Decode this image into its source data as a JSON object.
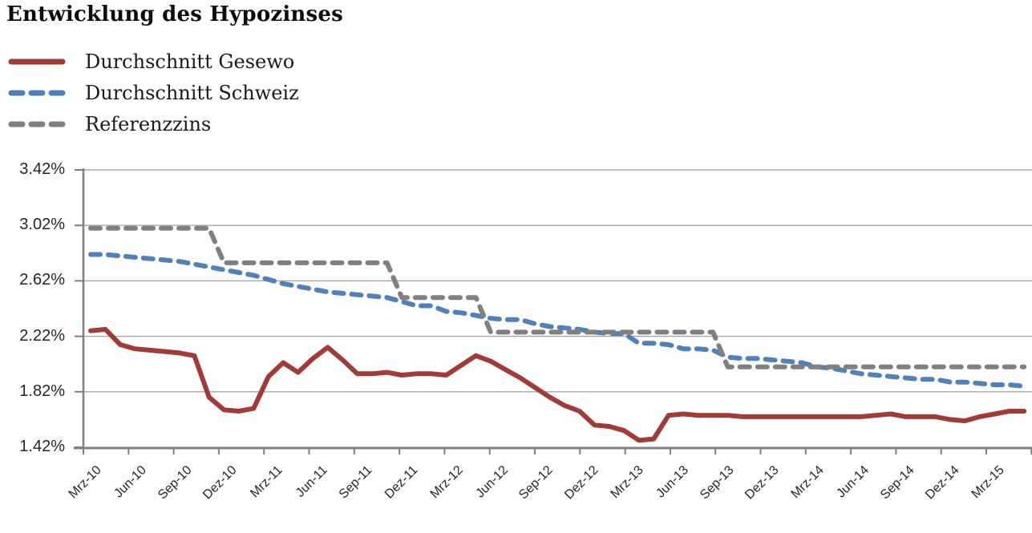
{
  "page": {
    "background": "#ffffff"
  },
  "chart_data": {
    "type": "line",
    "title": "Entwicklung des Hypozinses",
    "xlabel": "",
    "ylabel": "",
    "grid": "horizontal",
    "legend_position": "top-left",
    "ylim": [
      1.42,
      3.42
    ],
    "y_step": 0.4,
    "y_ticks": [
      "3.42%",
      "3.02%",
      "2.62%",
      "2.22%",
      "1.82%",
      "1.42%"
    ],
    "y_tick_values": [
      3.42,
      3.02,
      2.62,
      2.22,
      1.82,
      1.42
    ],
    "x_tick_labels": [
      "Mrz-10",
      "Jun-10",
      "Sep-10",
      "Dez-10",
      "Mrz-11",
      "Jun-11",
      "Sep-11",
      "Dez-11",
      "Mrz-12",
      "Jun-12",
      "Sep-12",
      "Dez-12",
      "Mrz-13",
      "Jun-13",
      "Sep-13",
      "Dez-13",
      "Mrz-14",
      "Jun-14",
      "Sep-14",
      "Dez-14",
      "Mrz-15"
    ],
    "x": [
      "Mrz-10",
      "Apr-10",
      "Mai-10",
      "Jun-10",
      "Jul-10",
      "Aug-10",
      "Sep-10",
      "Okt-10",
      "Nov-10",
      "Dez-10",
      "Jan-11",
      "Feb-11",
      "Mrz-11",
      "Apr-11",
      "Mai-11",
      "Jun-11",
      "Jul-11",
      "Aug-11",
      "Sep-11",
      "Okt-11",
      "Nov-11",
      "Dez-11",
      "Jan-12",
      "Feb-12",
      "Mrz-12",
      "Apr-12",
      "Mai-12",
      "Jun-12",
      "Jul-12",
      "Aug-12",
      "Sep-12",
      "Okt-12",
      "Nov-12",
      "Dez-12",
      "Jan-13",
      "Feb-13",
      "Mrz-13",
      "Apr-13",
      "Mai-13",
      "Jun-13",
      "Jul-13",
      "Aug-13",
      "Sep-13",
      "Okt-13",
      "Nov-13",
      "Dez-13",
      "Jan-14",
      "Feb-14",
      "Mrz-14",
      "Apr-14",
      "Mai-14",
      "Jun-14",
      "Jul-14",
      "Aug-14",
      "Sep-14",
      "Okt-14",
      "Nov-14",
      "Dez-14",
      "Jan-15",
      "Feb-15",
      "Mrz-15",
      "Apr-15",
      "Mai-15",
      "Jun-15"
    ],
    "series": [
      {
        "name": "Durchschnitt Gesewo",
        "color": "#A23B38",
        "style": "solid",
        "values": [
          2.26,
          2.27,
          2.16,
          2.13,
          2.12,
          2.11,
          2.1,
          2.08,
          1.78,
          1.69,
          1.68,
          1.7,
          1.93,
          2.03,
          1.96,
          2.06,
          2.14,
          2.05,
          1.95,
          1.95,
          1.96,
          1.94,
          1.95,
          1.95,
          1.94,
          2.01,
          2.08,
          2.04,
          1.98,
          1.92,
          1.85,
          1.78,
          1.72,
          1.68,
          1.58,
          1.57,
          1.54,
          1.47,
          1.48,
          1.65,
          1.66,
          1.65,
          1.65,
          1.65,
          1.64,
          1.64,
          1.64,
          1.64,
          1.64,
          1.64,
          1.64,
          1.64,
          1.64,
          1.65,
          1.66,
          1.64,
          1.64,
          1.64,
          1.62,
          1.61,
          1.64,
          1.66,
          1.68,
          1.68
        ]
      },
      {
        "name": "Durchschnitt Schweiz",
        "color": "#4F81BD",
        "style": "dashed",
        "values": [
          2.81,
          2.81,
          2.8,
          2.79,
          2.78,
          2.77,
          2.76,
          2.74,
          2.72,
          2.7,
          2.68,
          2.66,
          2.63,
          2.6,
          2.58,
          2.56,
          2.54,
          2.53,
          2.52,
          2.51,
          2.5,
          2.47,
          2.44,
          2.44,
          2.4,
          2.39,
          2.37,
          2.35,
          2.34,
          2.34,
          2.31,
          2.29,
          2.28,
          2.27,
          2.25,
          2.24,
          2.24,
          2.17,
          2.17,
          2.16,
          2.13,
          2.13,
          2.12,
          2.07,
          2.06,
          2.06,
          2.05,
          2.04,
          2.03,
          2.0,
          1.99,
          1.97,
          1.95,
          1.94,
          1.93,
          1.92,
          1.91,
          1.91,
          1.89,
          1.89,
          1.88,
          1.87,
          1.87,
          1.86
        ]
      },
      {
        "name": "Referenzzins",
        "color": "#808080",
        "style": "dashed",
        "values": [
          3.0,
          3.0,
          3.0,
          3.0,
          3.0,
          3.0,
          3.0,
          3.0,
          3.0,
          2.75,
          2.75,
          2.75,
          2.75,
          2.75,
          2.75,
          2.75,
          2.75,
          2.75,
          2.75,
          2.75,
          2.75,
          2.5,
          2.5,
          2.5,
          2.5,
          2.5,
          2.5,
          2.25,
          2.25,
          2.25,
          2.25,
          2.25,
          2.25,
          2.25,
          2.25,
          2.25,
          2.25,
          2.25,
          2.25,
          2.25,
          2.25,
          2.25,
          2.25,
          2.0,
          2.0,
          2.0,
          2.0,
          2.0,
          2.0,
          2.0,
          2.0,
          2.0,
          2.0,
          2.0,
          2.0,
          2.0,
          2.0,
          2.0,
          2.0,
          2.0,
          2.0,
          2.0,
          2.0,
          2.0
        ]
      }
    ],
    "axis_colors": {
      "gridline": "#A6A6A6",
      "axis": "#808080",
      "tick": "#808080",
      "label": "#262626"
    }
  }
}
